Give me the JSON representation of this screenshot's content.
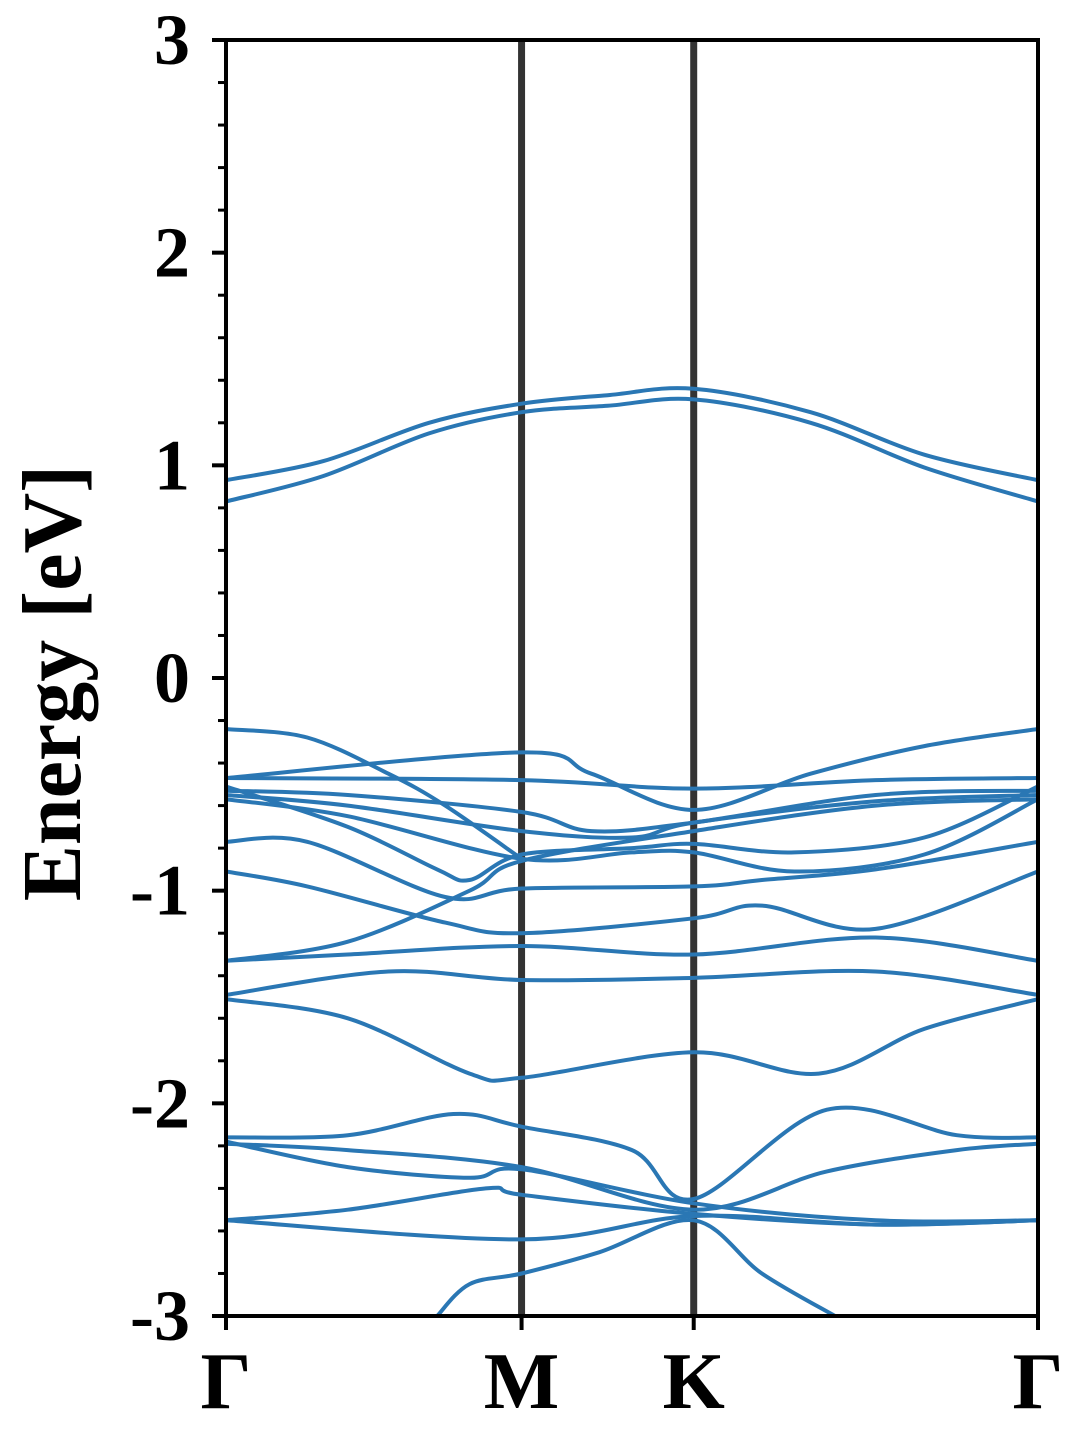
{
  "chart_data": {
    "type": "line",
    "title": "",
    "ylabel": "Energy [eV]",
    "xlabel": "",
    "xlim": [
      0,
      1
    ],
    "ylim": [
      -3,
      3
    ],
    "yticks": [
      3,
      2,
      1,
      0,
      -1,
      -2,
      -3
    ],
    "ytick_labels": [
      "3",
      "2",
      "1",
      "0",
      "-1",
      "-2",
      "-3"
    ],
    "kpoints": [
      {
        "label": "Γ",
        "x": 0
      },
      {
        "label": "M",
        "x": 0.364
      },
      {
        "label": "K",
        "x": 0.576
      },
      {
        "label": "Γ",
        "x": 1
      }
    ],
    "kpoint_line_color": "#333333",
    "band_color": "#2a77b4",
    "grid": false,
    "legend": "none",
    "series": [
      {
        "x": [
          0,
          0.12,
          0.25,
          0.364,
          0.47,
          0.576,
          0.72,
          0.86,
          1
        ],
        "values": [
          0.93,
          1.02,
          1.2,
          1.29,
          1.33,
          1.36,
          1.25,
          1.05,
          0.93
        ]
      },
      {
        "x": [
          0,
          0.12,
          0.25,
          0.364,
          0.47,
          0.576,
          0.72,
          0.86,
          1
        ],
        "values": [
          0.83,
          0.95,
          1.15,
          1.25,
          1.28,
          1.31,
          1.2,
          0.99,
          0.83
        ]
      },
      {
        "x": [
          0,
          0.1,
          0.2,
          0.27,
          0.364
        ],
        "values": [
          -0.24,
          -0.28,
          -0.45,
          -0.6,
          -0.85
        ]
      },
      {
        "x": [
          0,
          0.364,
          0.45,
          0.576,
          0.72,
          0.86,
          1
        ],
        "values": [
          -0.47,
          -0.35,
          -0.45,
          -0.62,
          -0.45,
          -0.32,
          -0.24
        ]
      },
      {
        "x": [
          0,
          0.364,
          0.576,
          0.8,
          1
        ],
        "values": [
          -0.47,
          -0.48,
          -0.52,
          -0.48,
          -0.47
        ]
      },
      {
        "x": [
          0,
          0.15,
          0.364,
          0.45,
          0.576,
          0.8,
          1
        ],
        "values": [
          -0.53,
          -0.55,
          -0.63,
          -0.72,
          -0.68,
          -0.55,
          -0.53
        ]
      },
      {
        "x": [
          0,
          0.15,
          0.364,
          0.5,
          0.576,
          0.8,
          1
        ],
        "values": [
          -0.55,
          -0.6,
          -0.72,
          -0.75,
          -0.68,
          -0.58,
          -0.55
        ]
      },
      {
        "x": [
          0,
          0.15,
          0.26,
          0.3,
          0.364,
          0.5,
          0.576,
          0.7,
          0.86,
          1
        ],
        "values": [
          -0.51,
          -0.7,
          -0.9,
          -0.95,
          -0.83,
          -0.8,
          -0.78,
          -0.82,
          -0.75,
          -0.51
        ]
      },
      {
        "x": [
          0,
          0.15,
          0.364,
          0.5,
          0.576,
          0.7,
          0.86,
          1
        ],
        "values": [
          -0.57,
          -0.65,
          -0.85,
          -0.82,
          -0.82,
          -0.91,
          -0.83,
          -0.57
        ]
      },
      {
        "x": [
          0,
          0.1,
          0.27,
          0.364,
          0.576,
          0.66,
          0.8,
          1
        ],
        "values": [
          -0.77,
          -0.77,
          -1.03,
          -0.99,
          -0.98,
          -0.95,
          -0.9,
          -0.77
        ]
      },
      {
        "x": [
          0,
          0.1,
          0.27,
          0.364,
          0.576,
          0.66,
          0.8,
          1
        ],
        "values": [
          -0.91,
          -0.98,
          -1.15,
          -1.2,
          -1.13,
          -1.07,
          -1.18,
          -0.91
        ]
      },
      {
        "x": [
          0,
          0.15,
          0.3,
          0.364,
          0.576,
          0.8,
          1
        ],
        "values": [
          -1.33,
          -1.24,
          -1.0,
          -0.86,
          -0.72,
          -0.6,
          -0.57
        ]
      },
      {
        "x": [
          0,
          0.15,
          0.364,
          0.576,
          0.8,
          1
        ],
        "values": [
          -1.33,
          -1.3,
          -1.26,
          -1.3,
          -1.22,
          -1.33
        ]
      },
      {
        "x": [
          0,
          0.2,
          0.364,
          0.576,
          0.8,
          1
        ],
        "values": [
          -1.49,
          -1.38,
          -1.42,
          -1.41,
          -1.38,
          -1.49
        ]
      },
      {
        "x": [
          0,
          0.15,
          0.3,
          0.364,
          0.576,
          0.73,
          0.86,
          1
        ],
        "values": [
          -1.51,
          -1.6,
          -1.86,
          -1.88,
          -1.76,
          -1.86,
          -1.65,
          -1.51
        ]
      },
      {
        "x": [
          0,
          0.15,
          0.28,
          0.364,
          0.5,
          0.576,
          0.74,
          0.9,
          1
        ],
        "values": [
          -2.16,
          -2.15,
          -2.05,
          -2.11,
          -2.22,
          -2.45,
          -2.03,
          -2.15,
          -2.16
        ]
      },
      {
        "x": [
          0,
          0.15,
          0.364,
          0.576,
          0.74,
          0.9,
          1
        ],
        "values": [
          -2.19,
          -2.22,
          -2.3,
          -2.5,
          -2.32,
          -2.22,
          -2.19
        ]
      },
      {
        "x": [
          0,
          0.15,
          0.3,
          0.364,
          0.576,
          0.8,
          1
        ],
        "values": [
          -2.18,
          -2.3,
          -2.35,
          -2.31,
          -2.47,
          -2.55,
          -2.55
        ]
      },
      {
        "x": [
          0,
          0.15,
          0.32,
          0.364,
          0.576,
          0.8,
          1
        ],
        "values": [
          -2.55,
          -2.5,
          -2.4,
          -2.43,
          -2.52,
          -2.57,
          -2.55
        ]
      },
      {
        "x": [
          0,
          0.364,
          0.576,
          0.8,
          1
        ],
        "values": [
          -2.55,
          -2.64,
          -2.53,
          -2.57,
          -2.55
        ]
      },
      {
        "x": [
          0.26,
          0.3,
          0.364,
          0.46,
          0.576,
          0.66,
          0.75
        ],
        "values": [
          -3.0,
          -2.85,
          -2.8,
          -2.7,
          -2.55,
          -2.8,
          -3.0
        ]
      }
    ]
  }
}
